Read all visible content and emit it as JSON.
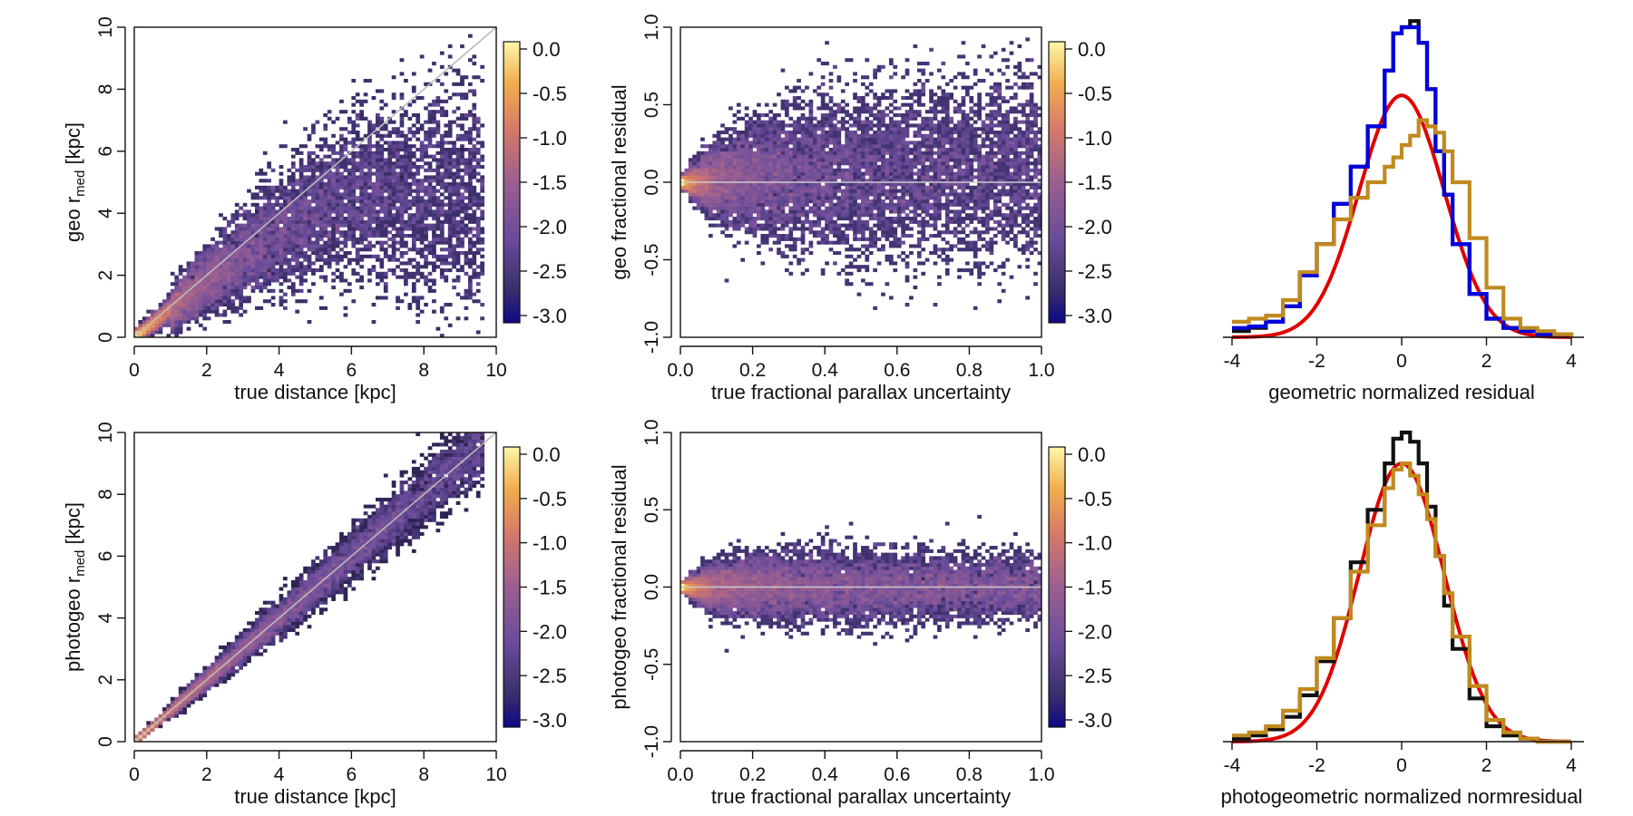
{
  "chart_data": [
    {
      "type": "heatmap",
      "xlabel": "true distance [kpc]",
      "ylabel_main": "geo r",
      "ylabel_sub": "med",
      "ylabel_unit": " [kpc]",
      "xlim": [
        0,
        10
      ],
      "ylim": [
        0,
        10
      ],
      "xticks": [
        0,
        2,
        4,
        6,
        8,
        10
      ],
      "yticks": [
        0,
        2,
        4,
        6,
        8,
        10
      ],
      "colorbar": {
        "range": [
          -3.0,
          0.0
        ],
        "ticks": [
          "0.0",
          "-0.5",
          "-1.0",
          "-1.5",
          "-2.0",
          "-2.5",
          "-3.0"
        ]
      },
      "reference_line": "y = x",
      "density_ridge": [
        [
          0,
          0
        ],
        [
          1,
          0.9
        ],
        [
          2,
          1.8
        ],
        [
          3,
          2.6
        ],
        [
          4,
          3.4
        ],
        [
          5,
          4.1
        ],
        [
          6,
          4.6
        ]
      ],
      "scatter_band_sigma_frac": 0.38
    },
    {
      "type": "heatmap",
      "xlabel": "true fractional parallax uncertainty",
      "ylabel": "geo fractional residual",
      "xlim": [
        0,
        1
      ],
      "ylim": [
        -1,
        1
      ],
      "xticks": [
        "0.0",
        "0.2",
        "0.4",
        "0.6",
        "0.8",
        "1.0"
      ],
      "yticks": [
        "-1.0",
        "-0.5",
        "0.0",
        "0.5",
        "1.0"
      ],
      "colorbar": {
        "range": [
          -3.0,
          0.0
        ],
        "ticks": [
          "0.0",
          "-0.5",
          "-1.0",
          "-1.5",
          "-2.0",
          "-2.5",
          "-3.0"
        ]
      },
      "reference_line": "y = 0",
      "spread_at_x": [
        [
          0.0,
          0.02
        ],
        [
          0.1,
          0.22
        ],
        [
          0.3,
          0.4
        ],
        [
          0.6,
          0.5
        ],
        [
          1.0,
          0.55
        ]
      ],
      "mean_offset_at_x": [
        [
          0.0,
          0.0
        ],
        [
          0.4,
          0.05
        ],
        [
          1.0,
          0.1
        ]
      ]
    },
    {
      "type": "line",
      "xlabel": "geometric normalized residual",
      "xlim": [
        -4,
        4
      ],
      "xticks": [
        -4,
        -2,
        0,
        2,
        4
      ],
      "series": [
        {
          "color": "#e00000",
          "kind": "gaussian",
          "mu": 0,
          "sigma": 1,
          "peak": 0.78
        },
        {
          "color": "#111111",
          "kind": "step",
          "x": [
            -4.0,
            -3.6,
            -3.2,
            -2.8,
            -2.4,
            -2.0,
            -1.6,
            -1.2,
            -0.8,
            -0.4,
            -0.2,
            0.0,
            0.2,
            0.4,
            0.6,
            0.8,
            1.0,
            1.2,
            1.6,
            2.0,
            2.4,
            2.8,
            3.2,
            3.6,
            4.0
          ],
          "y": [
            0.02,
            0.03,
            0.05,
            0.1,
            0.2,
            0.3,
            0.43,
            0.55,
            0.68,
            0.86,
            0.98,
            1.0,
            1.02,
            0.95,
            0.8,
            0.6,
            0.46,
            0.3,
            0.14,
            0.06,
            0.03,
            0.02,
            0.01,
            0.01,
            0.0
          ]
        },
        {
          "color": "#0000dd",
          "kind": "step",
          "x": [
            -4.0,
            -3.6,
            -3.2,
            -2.8,
            -2.4,
            -2.0,
            -1.6,
            -1.2,
            -0.8,
            -0.4,
            -0.2,
            0.0,
            0.2,
            0.4,
            0.6,
            0.8,
            1.0,
            1.2,
            1.6,
            2.0,
            2.4,
            2.8,
            3.2,
            3.6,
            4.0
          ],
          "y": [
            0.03,
            0.035,
            0.05,
            0.1,
            0.2,
            0.3,
            0.43,
            0.55,
            0.68,
            0.86,
            0.98,
            1.0,
            1.0,
            0.95,
            0.8,
            0.6,
            0.46,
            0.3,
            0.14,
            0.06,
            0.03,
            0.02,
            0.01,
            0.01,
            0.0
          ]
        },
        {
          "color": "#c08a1e",
          "kind": "step",
          "x": [
            -4.0,
            -3.6,
            -3.2,
            -2.8,
            -2.4,
            -2.0,
            -1.6,
            -1.2,
            -0.8,
            -0.4,
            -0.2,
            0.0,
            0.2,
            0.4,
            0.6,
            0.8,
            1.0,
            1.2,
            1.6,
            2.0,
            2.4,
            2.8,
            3.2,
            3.6,
            4.0
          ],
          "y": [
            0.05,
            0.06,
            0.07,
            0.12,
            0.21,
            0.3,
            0.38,
            0.45,
            0.5,
            0.55,
            0.58,
            0.62,
            0.65,
            0.7,
            0.68,
            0.66,
            0.6,
            0.5,
            0.32,
            0.16,
            0.06,
            0.03,
            0.02,
            0.01,
            0.0
          ]
        }
      ]
    },
    {
      "type": "heatmap",
      "xlabel": "true distance [kpc]",
      "ylabel_main": "photogeo r",
      "ylabel_sub": "med",
      "ylabel_unit": " [kpc]",
      "xlim": [
        0,
        10
      ],
      "ylim": [
        0,
        10
      ],
      "xticks": [
        0,
        2,
        4,
        6,
        8,
        10
      ],
      "yticks": [
        0,
        2,
        4,
        6,
        8,
        10
      ],
      "colorbar": {
        "range": [
          -3.0,
          0.0
        ],
        "ticks": [
          "0.0",
          "-0.5",
          "-1.0",
          "-1.5",
          "-2.0",
          "-2.5",
          "-3.0"
        ]
      },
      "reference_line": "y = x",
      "density_ridge": [
        [
          0,
          0
        ],
        [
          2,
          2
        ],
        [
          4,
          4
        ],
        [
          6,
          6
        ],
        [
          8,
          8
        ],
        [
          10,
          10
        ]
      ],
      "scatter_band_sigma_frac": 0.12
    },
    {
      "type": "heatmap",
      "xlabel": "true fractional parallax uncertainty",
      "ylabel": "photogeo fractional residual",
      "xlim": [
        0,
        1
      ],
      "ylim": [
        -1,
        1
      ],
      "xticks": [
        "0.0",
        "0.2",
        "0.4",
        "0.6",
        "0.8",
        "1.0"
      ],
      "yticks": [
        "-1.0",
        "-0.5",
        "0.0",
        "0.5",
        "1.0"
      ],
      "colorbar": {
        "range": [
          -3.0,
          0.0
        ],
        "ticks": [
          "0.0",
          "-0.5",
          "-1.0",
          "-1.5",
          "-2.0",
          "-2.5",
          "-3.0"
        ]
      },
      "reference_line": "y = 0",
      "spread_at_x": [
        [
          0.0,
          0.02
        ],
        [
          0.1,
          0.15
        ],
        [
          0.3,
          0.2
        ],
        [
          0.6,
          0.2
        ],
        [
          1.0,
          0.18
        ]
      ],
      "mean_offset_at_x": [
        [
          0.0,
          0.0
        ],
        [
          1.0,
          0.0
        ]
      ]
    },
    {
      "type": "line",
      "xlabel": "photogeometric normalized normresidual",
      "xlim": [
        -4,
        4
      ],
      "xticks": [
        -4,
        -2,
        0,
        2,
        4
      ],
      "series": [
        {
          "color": "#e00000",
          "kind": "gaussian",
          "mu": 0,
          "sigma": 1,
          "peak": 0.9
        },
        {
          "color": "#111111",
          "kind": "step",
          "x": [
            -4.0,
            -3.6,
            -3.2,
            -2.8,
            -2.4,
            -2.0,
            -1.6,
            -1.2,
            -0.8,
            -0.4,
            -0.2,
            0.0,
            0.2,
            0.4,
            0.6,
            0.8,
            1.0,
            1.2,
            1.6,
            2.0,
            2.4,
            2.8,
            3.2,
            3.6,
            4.0
          ],
          "y": [
            0.01,
            0.02,
            0.04,
            0.08,
            0.15,
            0.26,
            0.4,
            0.58,
            0.75,
            0.9,
            0.98,
            1.0,
            0.97,
            0.9,
            0.76,
            0.6,
            0.44,
            0.3,
            0.14,
            0.05,
            0.02,
            0.01,
            0.0,
            0.0,
            0.0
          ]
        },
        {
          "color": "#c08a1e",
          "kind": "step",
          "x": [
            -4.0,
            -3.6,
            -3.2,
            -2.8,
            -2.4,
            -2.0,
            -1.6,
            -1.2,
            -0.8,
            -0.4,
            -0.2,
            0.0,
            0.2,
            0.4,
            0.6,
            0.8,
            1.0,
            1.2,
            1.6,
            2.0,
            2.4,
            2.8,
            3.2,
            3.6,
            4.0
          ],
          "y": [
            0.02,
            0.03,
            0.05,
            0.1,
            0.17,
            0.27,
            0.4,
            0.55,
            0.7,
            0.82,
            0.88,
            0.9,
            0.86,
            0.8,
            0.72,
            0.6,
            0.48,
            0.34,
            0.18,
            0.07,
            0.03,
            0.01,
            0.0,
            0.0,
            0.0
          ]
        }
      ]
    }
  ]
}
